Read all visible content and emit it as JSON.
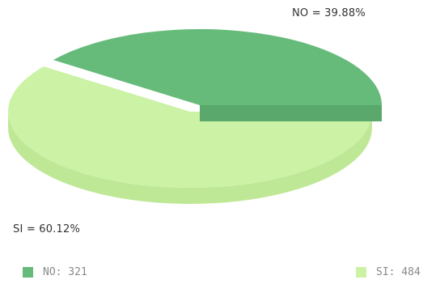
{
  "chart_data": {
    "type": "pie",
    "style": "3d-exploded",
    "slices": [
      {
        "label": "NO",
        "value": 321,
        "percent_text": "NO = 39.88%",
        "legend_text": "NO: 321",
        "color": "#66bb7a",
        "side_color": "#5aa86c",
        "exploded": true
      },
      {
        "label": "SI",
        "value": 484,
        "percent_text": "SI = 60.12%",
        "legend_text": "SI: 484",
        "color": "#ccf2a6",
        "side_color": "#bfe896",
        "exploded": false
      }
    ],
    "legend_position": "bottom"
  }
}
